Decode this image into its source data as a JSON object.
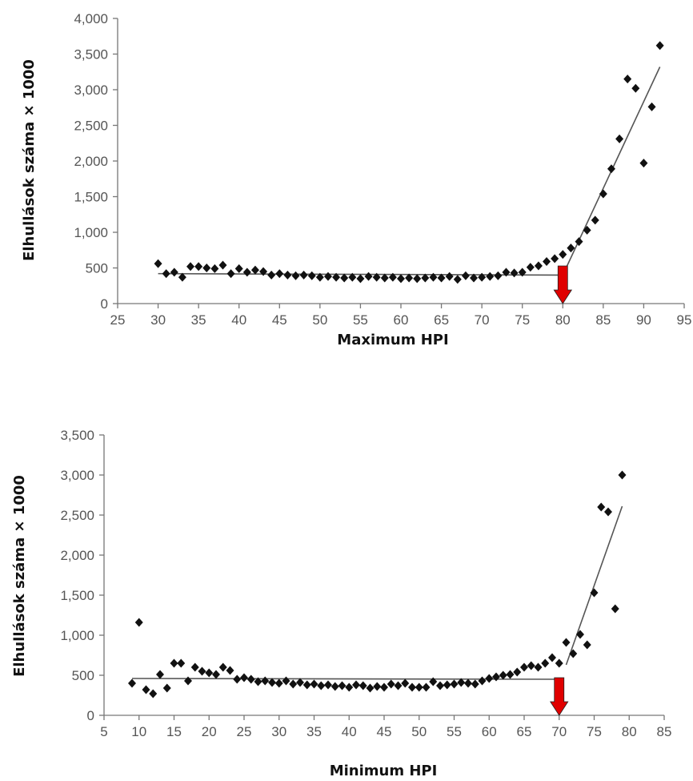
{
  "chart_data": [
    {
      "type": "scatter",
      "title": "",
      "xlabel": "Maximum HPI",
      "ylabel": "Elhullások száma × 1000",
      "xlim": [
        25,
        95
      ],
      "ylim": [
        0,
        4000
      ],
      "x_ticks": [
        "25",
        "30",
        "35",
        "40",
        "45",
        "50",
        "55",
        "60",
        "65",
        "70",
        "75",
        "80",
        "85",
        "90",
        "95"
      ],
      "y_ticks": [
        "0",
        "500",
        "1,000",
        "1,500",
        "2,000",
        "2,500",
        "3,000",
        "3,500",
        "4,000"
      ],
      "grid": false,
      "points": [
        [
          30,
          560
        ],
        [
          31,
          420
        ],
        [
          32,
          440
        ],
        [
          33,
          370
        ],
        [
          34,
          520
        ],
        [
          35,
          520
        ],
        [
          36,
          500
        ],
        [
          37,
          490
        ],
        [
          38,
          540
        ],
        [
          39,
          420
        ],
        [
          40,
          490
        ],
        [
          41,
          440
        ],
        [
          42,
          470
        ],
        [
          43,
          450
        ],
        [
          44,
          400
        ],
        [
          45,
          420
        ],
        [
          46,
          400
        ],
        [
          47,
          390
        ],
        [
          48,
          400
        ],
        [
          49,
          390
        ],
        [
          50,
          370
        ],
        [
          51,
          380
        ],
        [
          52,
          370
        ],
        [
          53,
          360
        ],
        [
          54,
          370
        ],
        [
          55,
          350
        ],
        [
          56,
          380
        ],
        [
          57,
          370
        ],
        [
          58,
          360
        ],
        [
          59,
          370
        ],
        [
          60,
          350
        ],
        [
          61,
          360
        ],
        [
          62,
          350
        ],
        [
          63,
          360
        ],
        [
          64,
          370
        ],
        [
          65,
          360
        ],
        [
          66,
          380
        ],
        [
          67,
          340
        ],
        [
          68,
          390
        ],
        [
          69,
          360
        ],
        [
          70,
          370
        ],
        [
          71,
          380
        ],
        [
          72,
          390
        ],
        [
          73,
          440
        ],
        [
          74,
          430
        ],
        [
          75,
          440
        ],
        [
          76,
          510
        ],
        [
          77,
          530
        ],
        [
          78,
          590
        ],
        [
          79,
          630
        ],
        [
          80,
          690
        ],
        [
          81,
          780
        ],
        [
          82,
          870
        ],
        [
          83,
          1030
        ],
        [
          84,
          1170
        ],
        [
          85,
          1540
        ],
        [
          86,
          1890
        ],
        [
          87,
          2310
        ],
        [
          88,
          3150
        ],
        [
          89,
          3020
        ],
        [
          90,
          1970
        ],
        [
          91,
          2760
        ],
        [
          92,
          3620
        ]
      ],
      "trend_lines": [
        {
          "x": [
            30,
            80
          ],
          "y": [
            420,
            400
          ]
        },
        {
          "x": [
            80,
            92
          ],
          "y": [
            400,
            3320
          ]
        }
      ],
      "annotations": [
        {
          "type": "arrow",
          "x": 80,
          "color": "#e00000"
        }
      ]
    },
    {
      "type": "scatter",
      "title": "",
      "xlabel": "Minimum HPI",
      "ylabel": "Elhullások száma × 1000",
      "xlim": [
        5,
        85
      ],
      "ylim": [
        0,
        3500
      ],
      "x_ticks": [
        "5",
        "10",
        "15",
        "20",
        "25",
        "30",
        "35",
        "40",
        "45",
        "50",
        "55",
        "60",
        "65",
        "70",
        "75",
        "80",
        "85"
      ],
      "y_ticks": [
        "0",
        "500",
        "1,000",
        "1,500",
        "2,000",
        "2,500",
        "3,000",
        "3,500"
      ],
      "grid": false,
      "points": [
        [
          9,
          400
        ],
        [
          10,
          1160
        ],
        [
          11,
          320
        ],
        [
          12,
          270
        ],
        [
          13,
          510
        ],
        [
          14,
          340
        ],
        [
          15,
          650
        ],
        [
          16,
          650
        ],
        [
          17,
          430
        ],
        [
          18,
          600
        ],
        [
          19,
          550
        ],
        [
          20,
          530
        ],
        [
          21,
          510
        ],
        [
          22,
          600
        ],
        [
          23,
          560
        ],
        [
          24,
          450
        ],
        [
          25,
          470
        ],
        [
          26,
          450
        ],
        [
          27,
          420
        ],
        [
          28,
          430
        ],
        [
          29,
          410
        ],
        [
          30,
          400
        ],
        [
          31,
          430
        ],
        [
          32,
          390
        ],
        [
          33,
          410
        ],
        [
          34,
          380
        ],
        [
          35,
          390
        ],
        [
          36,
          370
        ],
        [
          37,
          380
        ],
        [
          38,
          360
        ],
        [
          39,
          370
        ],
        [
          40,
          350
        ],
        [
          41,
          380
        ],
        [
          42,
          370
        ],
        [
          43,
          340
        ],
        [
          44,
          360
        ],
        [
          45,
          350
        ],
        [
          46,
          390
        ],
        [
          47,
          370
        ],
        [
          48,
          400
        ],
        [
          49,
          350
        ],
        [
          50,
          350
        ],
        [
          51,
          350
        ],
        [
          52,
          420
        ],
        [
          53,
          370
        ],
        [
          54,
          380
        ],
        [
          55,
          390
        ],
        [
          56,
          410
        ],
        [
          57,
          400
        ],
        [
          58,
          390
        ],
        [
          59,
          430
        ],
        [
          60,
          460
        ],
        [
          61,
          480
        ],
        [
          62,
          500
        ],
        [
          63,
          510
        ],
        [
          64,
          540
        ],
        [
          65,
          600
        ],
        [
          66,
          620
        ],
        [
          67,
          600
        ],
        [
          68,
          650
        ],
        [
          69,
          720
        ],
        [
          70,
          650
        ],
        [
          71,
          910
        ],
        [
          72,
          770
        ],
        [
          73,
          1010
        ],
        [
          74,
          880
        ],
        [
          75,
          1530
        ],
        [
          76,
          2600
        ],
        [
          77,
          2540
        ],
        [
          78,
          1330
        ],
        [
          79,
          3000
        ]
      ],
      "trend_lines": [
        {
          "x": [
            9,
            70
          ],
          "y": [
            460,
            450
          ]
        },
        {
          "x": [
            71,
            79
          ],
          "y": [
            630,
            2610
          ]
        }
      ],
      "annotations": [
        {
          "type": "arrow",
          "x": 70,
          "color": "#e00000"
        }
      ]
    }
  ]
}
